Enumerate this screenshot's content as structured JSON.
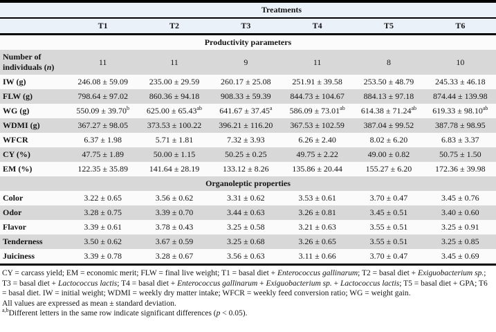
{
  "table": {
    "treatments_header": "Treatments",
    "columns": [
      "T1",
      "T2",
      "T3",
      "T4",
      "T5",
      "T6"
    ],
    "sections": [
      {
        "title": "Productivity parameters",
        "rows": [
          {
            "label": "Number of individuals (*n*)",
            "values": [
              "11",
              "11",
              "9",
              "11",
              "8",
              "10"
            ]
          },
          {
            "label": "IW (g)",
            "values": [
              "246.08 ± 59.09",
              "235.00 ± 29.59",
              "260.17 ± 25.08",
              "251.91 ± 39.58",
              "253.50 ± 48.79",
              "245.33 ± 46.18"
            ]
          },
          {
            "label": "FLW (g)",
            "values": [
              "798.64 ± 97.02",
              "860.36 ± 94.18",
              "908.33 ± 59.39",
              "844.73 ± 104.67",
              "884.13 ± 97.18",
              "874.44 ± 139.98"
            ]
          },
          {
            "label": "WG (g)",
            "values": [
              "550.09 ± 39.70^b^",
              "625.00 ± 65.43^ab^",
              "641.67 ± 37.45^a^",
              "586.09 ± 73.01^ab^",
              "614.38 ± 71.24^ab^",
              "619.33 ± 98.10^ab^"
            ]
          },
          {
            "label": "WDMI (g)",
            "values": [
              "367.27 ± 98.05",
              "373.53 ± 100.22",
              "396.21 ± 116.20",
              "367.53 ± 102.59",
              "387.04 ± 99.52",
              "387.78 ± 98.95"
            ]
          },
          {
            "label": "WFCR",
            "values": [
              "6.37 ± 1.98",
              "5.71 ± 1.81",
              "7.32 ± 3.93",
              "6.26 ± 2.40",
              "8.02 ± 6.20",
              "6.83 ± 3.37"
            ]
          },
          {
            "label": "CY (%)",
            "values": [
              "47.75 ± 1.89",
              "50.00 ± 1.15",
              "50.25 ± 0.25",
              "49.75 ± 2.22",
              "49.00 ± 0.82",
              "50.75 ± 1.50"
            ]
          },
          {
            "label": "EM (%)",
            "values": [
              "122.35 ± 35.89",
              "141.64 ± 28.19",
              "133.12 ± 8.26",
              "135.86 ± 20.44",
              "155.27 ± 6.20",
              "172.36 ± 39.98"
            ]
          }
        ]
      },
      {
        "title": "Organoleptic properties",
        "rows": [
          {
            "label": "Color",
            "values": [
              "3.22 ± 0.65",
              "3.56 ± 0.62",
              "3.31 ± 0.62",
              "3.53 ± 0.61",
              "3.70 ± 0.47",
              "3.45 ± 0.76"
            ]
          },
          {
            "label": "Odor",
            "values": [
              "3.28 ± 0.75",
              "3.39 ± 0.70",
              "3.44 ± 0.63",
              "3.26 ± 0.81",
              "3.45 ± 0.51",
              "3.40 ± 0.60"
            ]
          },
          {
            "label": "Flavor",
            "values": [
              "3.39 ± 0.61",
              "3.78 ± 0.43",
              "3.25 ± 0.58",
              "3.21 ± 0.63",
              "3.55 ± 0.51",
              "3.25 ± 0.91"
            ]
          },
          {
            "label": "Tenderness",
            "values": [
              "3.50 ± 0.62",
              "3.67 ± 0.59",
              "3.25 ± 0.68",
              "3.26 ± 0.65",
              "3.55 ± 0.51",
              "3.25 ± 0.85"
            ]
          },
          {
            "label": "Juiciness",
            "values": [
              "3.39 ± 0.78",
              "3.28 ± 0.67",
              "3.56 ± 0.63",
              "3.11 ± 0.66",
              "3.70 ± 0.47",
              "3.45 ± 0.69"
            ]
          }
        ]
      }
    ]
  },
  "footnotes": [
    "CY = carcass yield; EM = economic merit; FLW = final live weight; T1 = basal diet + *Enterococcus gallinarum*; T2 = basal diet + *Exiguobacterium sp.*; T3 = basal diet + *Lactococcus lactis*; T4 = basal diet + *Enterococcus gallinarum* + *Exiguobacterium sp.* + *Lactococcus lactis*; T5 = basal diet + GPA; T6 = basal diet. IW = initial weight; WDMI = weekly dry matter intake; WFCR = weekly feed conversion ratio; WG = weight gain.",
    "All values are expressed as mean ± standard deviation.",
    "^a,b^Different letters in the same row indicate significant differences (*p* < 0.05)."
  ],
  "colors": {
    "header_blue": "#eaf1f9",
    "row_gray": "#d8d8d8",
    "row_light": "#fbfbfb",
    "border": "#000000"
  }
}
